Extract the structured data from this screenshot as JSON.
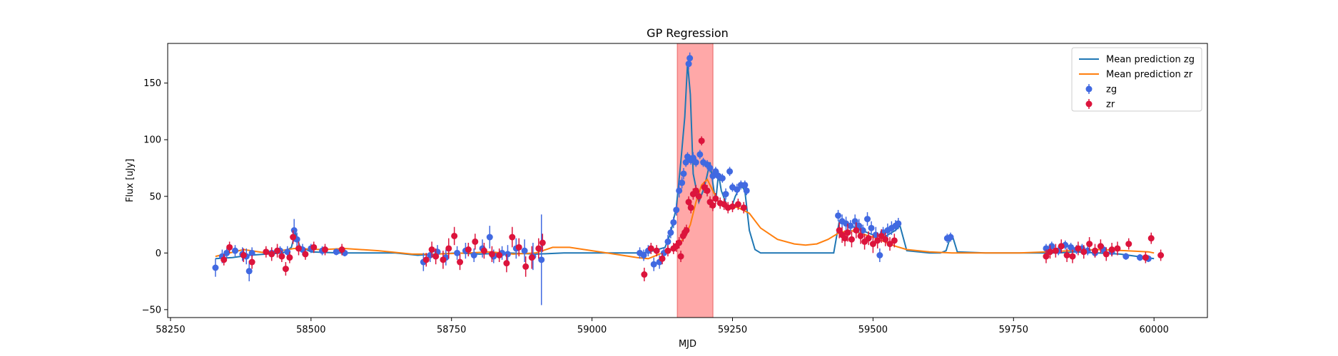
{
  "chart_data": {
    "type": "scatter",
    "title": "GP Regression",
    "xlabel": "MJD",
    "ylabel": "Flux [uJy]",
    "xlim": [
      58245,
      60095
    ],
    "ylim": [
      -57,
      185
    ],
    "xticks": [
      58250,
      58500,
      58750,
      59000,
      59250,
      59500,
      59750,
      60000
    ],
    "yticks": [
      -50,
      0,
      50,
      100,
      150
    ],
    "shaded_band": {
      "x0": 59152,
      "x1": 59215,
      "color": "#ff9e9e"
    },
    "legend": {
      "placement": "top-right",
      "entries": [
        "Mean prediction zg",
        "Mean prediction zr",
        "zg",
        "zr"
      ]
    },
    "series": [
      {
        "name": "Mean prediction zg",
        "kind": "line",
        "color": "#1f77b4",
        "x": [
          58330,
          58360,
          58390,
          58420,
          58450,
          58465,
          58472,
          58480,
          58500,
          58550,
          58600,
          58650,
          58690,
          58720,
          58760,
          58800,
          58850,
          58900,
          58950,
          59000,
          59050,
          59090,
          59110,
          59130,
          59140,
          59150,
          59158,
          59165,
          59170,
          59175,
          59180,
          59190,
          59200,
          59210,
          59215,
          59220,
          59225,
          59230,
          59240,
          59248,
          59255,
          59265,
          59272,
          59280,
          59290,
          59300,
          59330,
          59360,
          59400,
          59430,
          59440,
          59460,
          59480,
          59500,
          59520,
          59540,
          59548,
          59560,
          59600,
          59620,
          59630,
          59637,
          59642,
          59650,
          59700,
          59750,
          59800,
          59830,
          59860,
          59900,
          59940,
          59970,
          60000
        ],
        "y": [
          -5,
          -4,
          -2,
          -1,
          0,
          5,
          18,
          6,
          1,
          0,
          0,
          0,
          -2,
          -1,
          0,
          -1,
          0,
          -1,
          0,
          0,
          0,
          0,
          2,
          5,
          18,
          40,
          80,
          120,
          168,
          140,
          70,
          45,
          58,
          80,
          62,
          45,
          70,
          55,
          42,
          40,
          50,
          60,
          55,
          20,
          3,
          0,
          0,
          0,
          0,
          0,
          28,
          24,
          20,
          16,
          14,
          20,
          24,
          2,
          0,
          0,
          2,
          13,
          14,
          1,
          0,
          0,
          0,
          0,
          1,
          0,
          -1,
          -3,
          -5
        ]
      },
      {
        "name": "Mean prediction zr",
        "kind": "line",
        "color": "#ff7f0e",
        "x": [
          58330,
          58380,
          58420,
          58470,
          58520,
          58560,
          58620,
          58680,
          58720,
          58780,
          58820,
          58860,
          58900,
          58930,
          58960,
          59000,
          59040,
          59080,
          59100,
          59120,
          59140,
          59155,
          59165,
          59175,
          59185,
          59195,
          59205,
          59215,
          59225,
          59240,
          59260,
          59280,
          59300,
          59330,
          59360,
          59380,
          59400,
          59420,
          59440,
          59460,
          59480,
          59500,
          59520,
          59540,
          59560,
          59600,
          59640,
          59700,
          59760,
          59810,
          59850,
          59900,
          59950,
          59990,
          60000
        ],
        "y": [
          -3,
          3,
          0,
          4,
          3,
          4,
          2,
          -1,
          -1,
          0,
          1,
          -1,
          0,
          5,
          5,
          2,
          -1,
          -4,
          -5,
          -1,
          3,
          8,
          14,
          25,
          45,
          60,
          65,
          55,
          45,
          42,
          40,
          35,
          22,
          12,
          8,
          7,
          8,
          12,
          18,
          20,
          17,
          14,
          10,
          6,
          3,
          1,
          0,
          0,
          0,
          1,
          2,
          3,
          2,
          1,
          0
        ]
      },
      {
        "name": "zg",
        "kind": "points",
        "color": "#4169e1",
        "points": [
          [
            58330,
            -13,
            8
          ],
          [
            58342,
            -3,
            6
          ],
          [
            58350,
            0,
            4
          ],
          [
            58365,
            2,
            5
          ],
          [
            58378,
            -1,
            6
          ],
          [
            58385,
            -3,
            7
          ],
          [
            58390,
            -16,
            9
          ],
          [
            58395,
            0,
            5
          ],
          [
            58430,
            0,
            5
          ],
          [
            58445,
            2,
            4
          ],
          [
            58458,
            1,
            5
          ],
          [
            58470,
            20,
            10
          ],
          [
            58475,
            12,
            6
          ],
          [
            58485,
            3,
            5
          ],
          [
            58500,
            4,
            4
          ],
          [
            58520,
            2,
            4
          ],
          [
            58545,
            1,
            3
          ],
          [
            58560,
            0,
            3
          ],
          [
            58700,
            -8,
            8
          ],
          [
            58712,
            -2,
            6
          ],
          [
            58725,
            1,
            6
          ],
          [
            58740,
            -4,
            7
          ],
          [
            58760,
            0,
            6
          ],
          [
            58775,
            2,
            7
          ],
          [
            58790,
            -2,
            6
          ],
          [
            58805,
            4,
            8
          ],
          [
            58818,
            14,
            10
          ],
          [
            58825,
            -3,
            6
          ],
          [
            58840,
            0,
            6
          ],
          [
            58850,
            -1,
            8
          ],
          [
            58865,
            4,
            9
          ],
          [
            58880,
            2,
            10
          ],
          [
            58895,
            -3,
            12
          ],
          [
            58910,
            -6,
            40
          ],
          [
            59085,
            0,
            5
          ],
          [
            59092,
            -2,
            5
          ],
          [
            59100,
            2,
            5
          ],
          [
            59110,
            -10,
            6
          ],
          [
            59120,
            -8,
            6
          ],
          [
            59128,
            0,
            5
          ],
          [
            59135,
            10,
            6
          ],
          [
            59140,
            18,
            5
          ],
          [
            59145,
            27,
            5
          ],
          [
            59150,
            38,
            5
          ],
          [
            59155,
            55,
            6
          ],
          [
            59160,
            62,
            5
          ],
          [
            59163,
            70,
            5
          ],
          [
            59167,
            80,
            4
          ],
          [
            59170,
            85,
            4
          ],
          [
            59172,
            167,
            5
          ],
          [
            59174,
            172,
            5
          ],
          [
            59176,
            82,
            4
          ],
          [
            59180,
            84,
            5
          ],
          [
            59185,
            80,
            4
          ],
          [
            59192,
            87,
            4
          ],
          [
            59198,
            80,
            4
          ],
          [
            59205,
            78,
            4
          ],
          [
            59210,
            75,
            4
          ],
          [
            59215,
            68,
            4
          ],
          [
            59220,
            72,
            4
          ],
          [
            59225,
            68,
            4
          ],
          [
            59232,
            66,
            4
          ],
          [
            59238,
            52,
            5
          ],
          [
            59245,
            72,
            4
          ],
          [
            59250,
            58,
            4
          ],
          [
            59258,
            56,
            5
          ],
          [
            59265,
            60,
            4
          ],
          [
            59272,
            60,
            4
          ],
          [
            59275,
            55,
            4
          ],
          [
            59438,
            33,
            5
          ],
          [
            59445,
            28,
            6
          ],
          [
            59452,
            26,
            6
          ],
          [
            59460,
            24,
            5
          ],
          [
            59468,
            28,
            6
          ],
          [
            59475,
            24,
            6
          ],
          [
            59482,
            20,
            5
          ],
          [
            59490,
            30,
            6
          ],
          [
            59497,
            22,
            6
          ],
          [
            59505,
            16,
            7
          ],
          [
            59512,
            -2,
            6
          ],
          [
            59518,
            18,
            5
          ],
          [
            59526,
            20,
            6
          ],
          [
            59533,
            22,
            6
          ],
          [
            59540,
            24,
            5
          ],
          [
            59545,
            26,
            5
          ],
          [
            59632,
            13,
            4
          ],
          [
            59638,
            14,
            4
          ],
          [
            59808,
            4,
            4
          ],
          [
            59818,
            6,
            4
          ],
          [
            59830,
            2,
            4
          ],
          [
            59842,
            7,
            4
          ],
          [
            59852,
            5,
            4
          ],
          [
            59862,
            3,
            4
          ],
          [
            59872,
            4,
            4
          ],
          [
            59882,
            2,
            4
          ],
          [
            59895,
            0,
            4
          ],
          [
            59910,
            3,
            4
          ],
          [
            59925,
            1,
            4
          ],
          [
            59950,
            -3,
            3
          ],
          [
            59975,
            -4,
            3
          ],
          [
            59990,
            -5,
            3
          ]
        ]
      },
      {
        "name": "zr",
        "kind": "points",
        "color": "#dc143c",
        "points": [
          [
            58345,
            -6,
            5
          ],
          [
            58355,
            5,
            5
          ],
          [
            58380,
            -2,
            6
          ],
          [
            58395,
            -8,
            6
          ],
          [
            58420,
            1,
            5
          ],
          [
            58430,
            -1,
            6
          ],
          [
            58440,
            2,
            6
          ],
          [
            58448,
            -3,
            5
          ],
          [
            58455,
            -14,
            6
          ],
          [
            58462,
            -4,
            5
          ],
          [
            58468,
            14,
            6
          ],
          [
            58478,
            4,
            6
          ],
          [
            58490,
            -1,
            5
          ],
          [
            58505,
            5,
            5
          ],
          [
            58525,
            3,
            5
          ],
          [
            58555,
            3,
            5
          ],
          [
            58705,
            -6,
            6
          ],
          [
            58715,
            3,
            7
          ],
          [
            58722,
            -3,
            7
          ],
          [
            58735,
            -6,
            8
          ],
          [
            58745,
            4,
            9
          ],
          [
            58755,
            15,
            8
          ],
          [
            58765,
            -8,
            7
          ],
          [
            58780,
            3,
            6
          ],
          [
            58792,
            10,
            7
          ],
          [
            58808,
            2,
            7
          ],
          [
            58822,
            -1,
            7
          ],
          [
            58835,
            -2,
            6
          ],
          [
            58848,
            -9,
            8
          ],
          [
            58858,
            14,
            9
          ],
          [
            58870,
            5,
            8
          ],
          [
            58882,
            -12,
            9
          ],
          [
            58893,
            -4,
            10
          ],
          [
            58905,
            4,
            9
          ],
          [
            58912,
            9,
            8
          ],
          [
            59093,
            -19,
            6
          ],
          [
            59105,
            4,
            5
          ],
          [
            59115,
            2,
            5
          ],
          [
            59125,
            -5,
            5
          ],
          [
            59135,
            2,
            5
          ],
          [
            59145,
            4,
            5
          ],
          [
            59150,
            6,
            5
          ],
          [
            59155,
            9,
            5
          ],
          [
            59158,
            -3,
            5
          ],
          [
            59162,
            15,
            5
          ],
          [
            59165,
            18,
            5
          ],
          [
            59168,
            20,
            5
          ],
          [
            59172,
            45,
            5
          ],
          [
            59176,
            40,
            5
          ],
          [
            59180,
            52,
            5
          ],
          [
            59185,
            55,
            5
          ],
          [
            59190,
            50,
            5
          ],
          [
            59195,
            99,
            4
          ],
          [
            59200,
            58,
            5
          ],
          [
            59205,
            55,
            5
          ],
          [
            59210,
            45,
            5
          ],
          [
            59215,
            42,
            5
          ],
          [
            59220,
            48,
            5
          ],
          [
            59228,
            44,
            5
          ],
          [
            59235,
            43,
            5
          ],
          [
            59242,
            40,
            5
          ],
          [
            59250,
            41,
            5
          ],
          [
            59260,
            43,
            5
          ],
          [
            59270,
            40,
            5
          ],
          [
            59440,
            20,
            7
          ],
          [
            59445,
            16,
            7
          ],
          [
            59450,
            13,
            7
          ],
          [
            59455,
            18,
            8
          ],
          [
            59462,
            12,
            7
          ],
          [
            59470,
            20,
            7
          ],
          [
            59478,
            15,
            7
          ],
          [
            59485,
            10,
            7
          ],
          [
            59492,
            13,
            6
          ],
          [
            59500,
            8,
            8
          ],
          [
            59508,
            11,
            7
          ],
          [
            59515,
            15,
            6
          ],
          [
            59522,
            12,
            6
          ],
          [
            59530,
            8,
            6
          ],
          [
            59538,
            11,
            6
          ],
          [
            59808,
            -3,
            6
          ],
          [
            59815,
            1,
            6
          ],
          [
            59825,
            2,
            6
          ],
          [
            59835,
            6,
            6
          ],
          [
            59845,
            -2,
            6
          ],
          [
            59855,
            -3,
            6
          ],
          [
            59865,
            4,
            6
          ],
          [
            59875,
            1,
            6
          ],
          [
            59885,
            8,
            6
          ],
          [
            59895,
            2,
            6
          ],
          [
            59905,
            6,
            6
          ],
          [
            59915,
            -1,
            6
          ],
          [
            59925,
            3,
            6
          ],
          [
            59935,
            4,
            6
          ],
          [
            59955,
            8,
            5
          ],
          [
            59985,
            -4,
            5
          ],
          [
            59995,
            13,
            5
          ],
          [
            60012,
            -2,
            5
          ]
        ]
      }
    ]
  }
}
